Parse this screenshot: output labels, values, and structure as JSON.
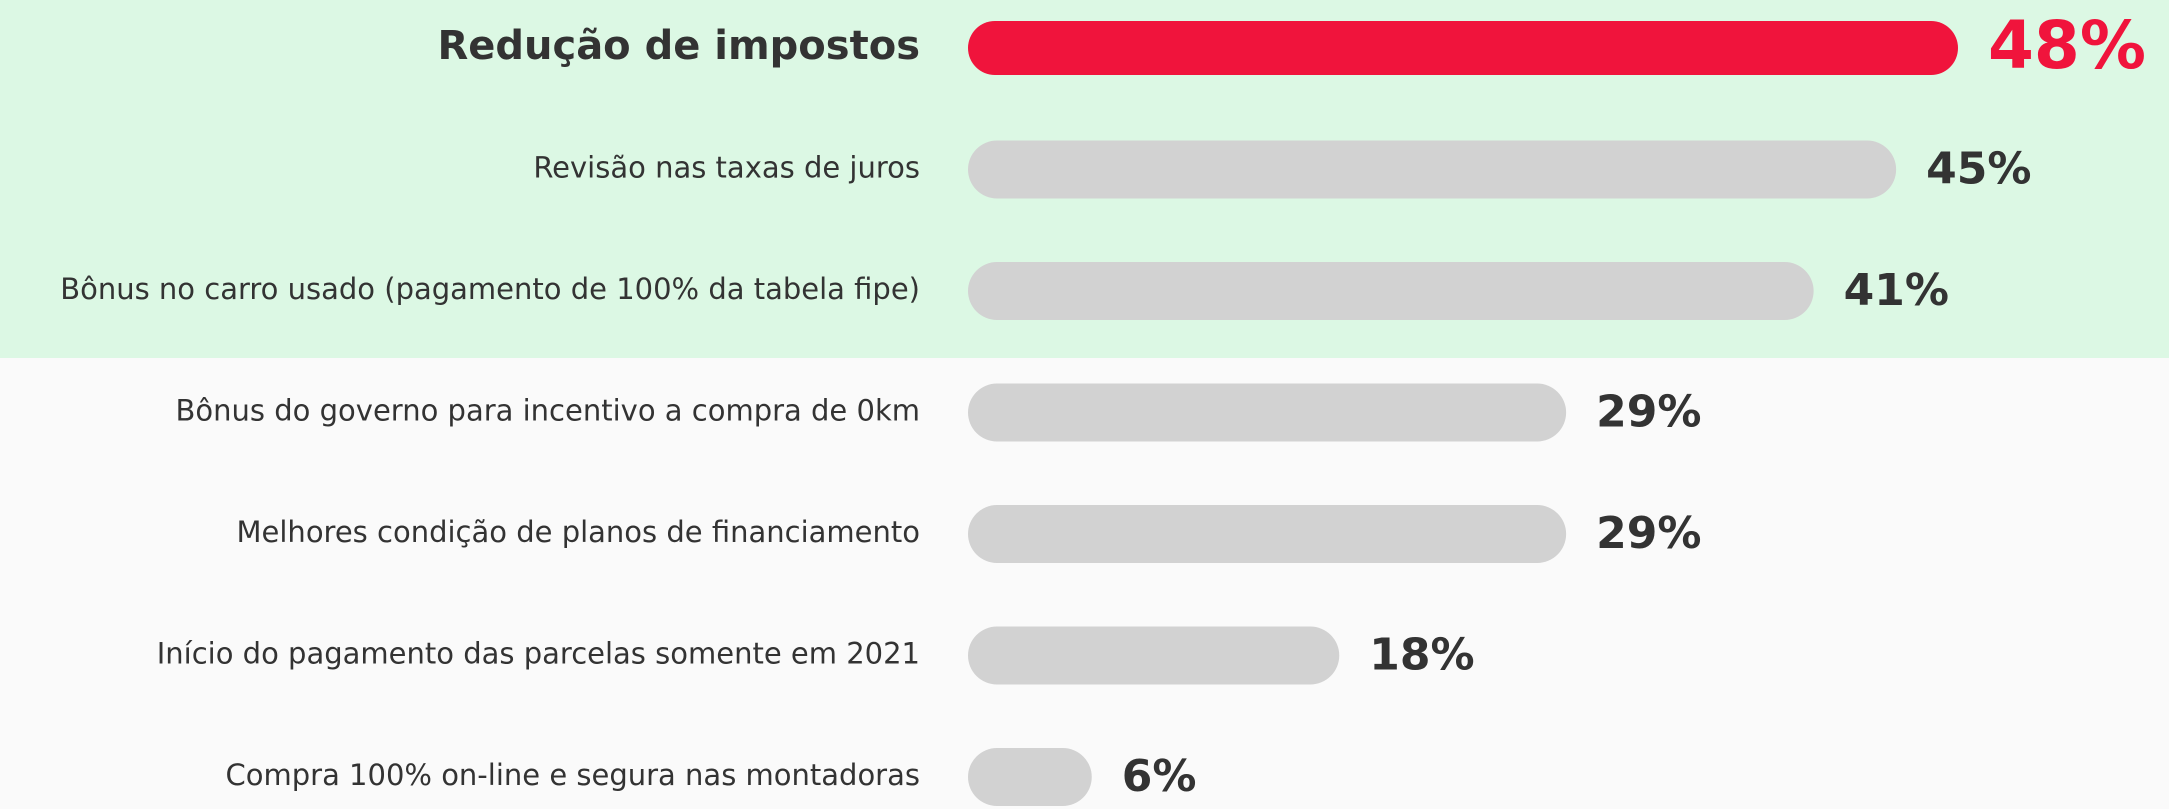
{
  "chart_data": {
    "type": "bar",
    "orientation": "horizontal",
    "categories": [
      "Redução de impostos",
      "Revisão nas taxas de juros",
      "Bônus no carro usado (pagamento de 100% da tabela fipe)",
      "Bônus do governo para incentivo a compra de 0km",
      "Melhores condição de planos de financiamento",
      "Início do pagamento das parcelas somente em 2021",
      "Compra 100% on-line e segura nas montadoras"
    ],
    "values": [
      48,
      45,
      41,
      29,
      29,
      18,
      6
    ],
    "value_labels": [
      "48%",
      "45%",
      "41%",
      "29%",
      "29%",
      "18%",
      "6%"
    ],
    "color": "#d2d2d2",
    "highlight": 0,
    "highlight_color": "#f0143c"
  }
}
